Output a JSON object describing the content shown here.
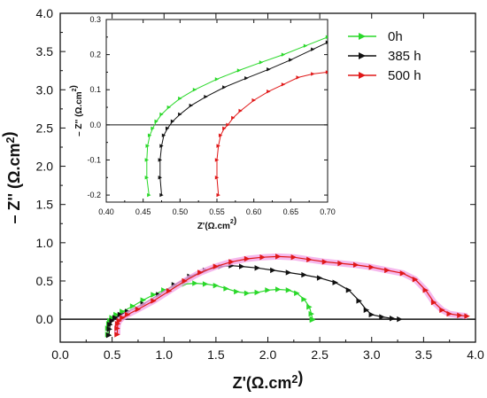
{
  "chart_data": [
    {
      "type": "line",
      "xlabel": "Z'(Ω.cm²)",
      "ylabel": "– Z'' (Ω.cm²)",
      "xlim": [
        0.0,
        4.0
      ],
      "ylim": [
        -0.3,
        4.0
      ],
      "xticks": [
        "0.0",
        "0.5",
        "1.0",
        "1.5",
        "2.0",
        "2.5",
        "3.0",
        "3.5",
        "4.0"
      ],
      "yticks": [
        "0.0",
        "0.5",
        "1.0",
        "1.5",
        "2.0",
        "2.5",
        "3.0",
        "3.5",
        "4.0"
      ],
      "legend_position": "top-right",
      "zero_line": true,
      "series": [
        {
          "name": "0h",
          "color": "#2ad82a",
          "points": [
            [
              0.46,
              -0.2
            ],
            [
              0.46,
              -0.12
            ],
            [
              0.47,
              -0.06
            ],
            [
              0.48,
              -0.02
            ],
            [
              0.5,
              0.02
            ],
            [
              0.54,
              0.06
            ],
            [
              0.6,
              0.1
            ],
            [
              0.7,
              0.17
            ],
            [
              0.8,
              0.25
            ],
            [
              0.9,
              0.32
            ],
            [
              1.0,
              0.38
            ],
            [
              1.1,
              0.43
            ],
            [
              1.2,
              0.46
            ],
            [
              1.3,
              0.47
            ],
            [
              1.4,
              0.46
            ],
            [
              1.5,
              0.44
            ],
            [
              1.6,
              0.4
            ],
            [
              1.7,
              0.36
            ],
            [
              1.8,
              0.34
            ],
            [
              1.9,
              0.35
            ],
            [
              2.0,
              0.38
            ],
            [
              2.1,
              0.39
            ],
            [
              2.2,
              0.38
            ],
            [
              2.28,
              0.34
            ],
            [
              2.35,
              0.26
            ],
            [
              2.4,
              0.16
            ],
            [
              2.42,
              0.07
            ],
            [
              2.43,
              0.0
            ],
            [
              2.43,
              -0.01
            ]
          ]
        },
        {
          "name": "385 h",
          "color": "#111111",
          "points": [
            [
              0.47,
              -0.21
            ],
            [
              0.475,
              -0.13
            ],
            [
              0.48,
              -0.07
            ],
            [
              0.5,
              -0.02
            ],
            [
              0.53,
              0.02
            ],
            [
              0.58,
              0.06
            ],
            [
              0.65,
              0.1
            ],
            [
              0.8,
              0.2
            ],
            [
              0.95,
              0.32
            ],
            [
              1.1,
              0.45
            ],
            [
              1.25,
              0.56
            ],
            [
              1.4,
              0.64
            ],
            [
              1.55,
              0.69
            ],
            [
              1.65,
              0.7
            ],
            [
              1.75,
              0.69
            ],
            [
              1.9,
              0.67
            ],
            [
              2.05,
              0.64
            ],
            [
              2.2,
              0.61
            ],
            [
              2.35,
              0.58
            ],
            [
              2.5,
              0.54
            ],
            [
              2.65,
              0.48
            ],
            [
              2.78,
              0.38
            ],
            [
              2.88,
              0.24
            ],
            [
              2.95,
              0.12
            ],
            [
              3.0,
              0.06
            ],
            [
              3.1,
              0.03
            ],
            [
              3.2,
              0.01
            ],
            [
              3.27,
              0.0
            ]
          ]
        },
        {
          "name": "500 h",
          "color": "#e01818",
          "points": [
            [
              0.55,
              -0.2
            ],
            [
              0.55,
              -0.12
            ],
            [
              0.555,
              -0.06
            ],
            [
              0.57,
              -0.02
            ],
            [
              0.6,
              0.02
            ],
            [
              0.65,
              0.06
            ],
            [
              0.75,
              0.13
            ],
            [
              0.9,
              0.24
            ],
            [
              1.05,
              0.37
            ],
            [
              1.2,
              0.5
            ],
            [
              1.35,
              0.61
            ],
            [
              1.5,
              0.69
            ],
            [
              1.65,
              0.75
            ],
            [
              1.8,
              0.79
            ],
            [
              1.95,
              0.81
            ],
            [
              2.1,
              0.82
            ],
            [
              2.25,
              0.81
            ],
            [
              2.4,
              0.78
            ],
            [
              2.55,
              0.75
            ],
            [
              2.7,
              0.73
            ],
            [
              2.85,
              0.71
            ],
            [
              3.0,
              0.68
            ],
            [
              3.15,
              0.64
            ],
            [
              3.3,
              0.6
            ],
            [
              3.42,
              0.52
            ],
            [
              3.52,
              0.38
            ],
            [
              3.6,
              0.22
            ],
            [
              3.68,
              0.12
            ],
            [
              3.75,
              0.07
            ],
            [
              3.85,
              0.05
            ],
            [
              3.92,
              0.04
            ]
          ]
        }
      ]
    },
    {
      "type": "line",
      "inset": true,
      "xlabel": "Z'(Ω.cm²)",
      "ylabel": "– Z'' (Ω.cm²)",
      "xlim": [
        0.4,
        0.7
      ],
      "ylim": [
        -0.22,
        0.3
      ],
      "xticks": [
        "0.40",
        "0.45",
        "0.50",
        "0.55",
        "0.60",
        "0.65",
        "0.70"
      ],
      "yticks": [
        "-0.2",
        "-0.1",
        "0.0",
        "0.1",
        "0.2",
        "0.3"
      ],
      "zero_line": true,
      "series": [
        {
          "name": "0h",
          "color": "#2ad82a",
          "points": [
            [
              0.458,
              -0.2
            ],
            [
              0.455,
              -0.15
            ],
            [
              0.455,
              -0.1
            ],
            [
              0.456,
              -0.06
            ],
            [
              0.459,
              -0.03
            ],
            [
              0.463,
              -0.01
            ],
            [
              0.468,
              0.01
            ],
            [
              0.475,
              0.03
            ],
            [
              0.485,
              0.05
            ],
            [
              0.5,
              0.075
            ],
            [
              0.52,
              0.1
            ],
            [
              0.55,
              0.13
            ],
            [
              0.58,
              0.155
            ],
            [
              0.61,
              0.178
            ],
            [
              0.64,
              0.2
            ],
            [
              0.67,
              0.225
            ],
            [
              0.7,
              0.25
            ]
          ]
        },
        {
          "name": "385 h",
          "color": "#111111",
          "points": [
            [
              0.475,
              -0.2
            ],
            [
              0.473,
              -0.15
            ],
            [
              0.473,
              -0.1
            ],
            [
              0.475,
              -0.06
            ],
            [
              0.478,
              -0.03
            ],
            [
              0.483,
              -0.01
            ],
            [
              0.49,
              0.01
            ],
            [
              0.5,
              0.03
            ],
            [
              0.515,
              0.055
            ],
            [
              0.535,
              0.08
            ],
            [
              0.56,
              0.107
            ],
            [
              0.59,
              0.133
            ],
            [
              0.62,
              0.158
            ],
            [
              0.65,
              0.185
            ],
            [
              0.68,
              0.215
            ],
            [
              0.7,
              0.235
            ]
          ]
        },
        {
          "name": "500 h",
          "color": "#e01818",
          "points": [
            [
              0.552,
              -0.2
            ],
            [
              0.55,
              -0.15
            ],
            [
              0.55,
              -0.1
            ],
            [
              0.552,
              -0.06
            ],
            [
              0.555,
              -0.03
            ],
            [
              0.56,
              -0.01
            ],
            [
              0.565,
              0.0
            ],
            [
              0.572,
              0.02
            ],
            [
              0.582,
              0.04
            ],
            [
              0.6,
              0.07
            ],
            [
              0.62,
              0.095
            ],
            [
              0.64,
              0.115
            ],
            [
              0.66,
              0.135
            ],
            [
              0.68,
              0.145
            ],
            [
              0.7,
              0.15
            ]
          ]
        }
      ]
    }
  ]
}
